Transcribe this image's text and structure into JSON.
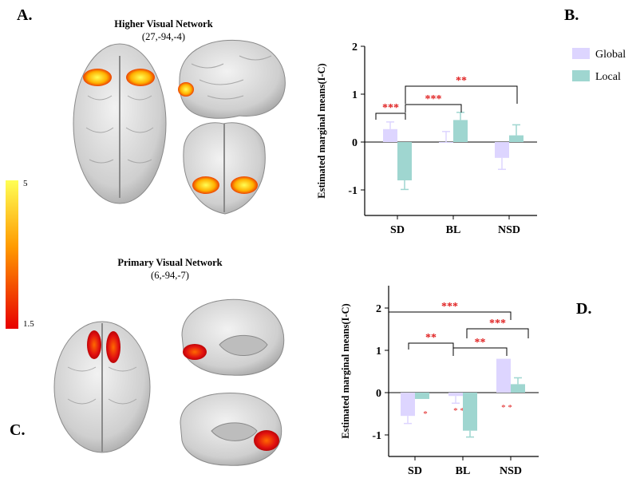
{
  "panels": {
    "A": {
      "letter": "A.",
      "title": "Higher Visual Network",
      "coords": "(27,-94,-4)"
    },
    "B": {
      "letter": "B."
    },
    "C": {
      "letter": "C.",
      "title": "Primary Visual Network",
      "coords": "(6,-94,-7)"
    },
    "D": {
      "letter": "D."
    }
  },
  "colorbar": {
    "max_label": "5",
    "min_label": "1.5",
    "colors": [
      "#ffff55",
      "#ff9a00",
      "#e80000"
    ]
  },
  "colors": {
    "global": "#ddd5ff",
    "local": "#9fd6d0",
    "sig": "#e02020"
  },
  "chart_data": [
    {
      "type": "bar",
      "panel": "B",
      "ylabel": "Estimated marginal means(I-C)",
      "categories": [
        "SD",
        "BL",
        "NSD"
      ],
      "ylim": [
        -1.5,
        2
      ],
      "yticks": [
        -1,
        0,
        1,
        2
      ],
      "legend": {
        "position": "top-right",
        "entries": [
          "Global",
          "Local"
        ]
      },
      "series": [
        {
          "name": "Global",
          "values": [
            0.27,
            0.0,
            -0.33
          ],
          "errors": [
            0.15,
            0.22,
            0.24
          ]
        },
        {
          "name": "Local",
          "values": [
            -0.8,
            0.46,
            0.14
          ],
          "errors": [
            0.19,
            0.16,
            0.22
          ]
        }
      ],
      "significance": [
        {
          "from": "SD-Global",
          "to": "SD-Local",
          "label": "***"
        },
        {
          "from": "SD-Local",
          "to": "BL-Local",
          "label": "***"
        },
        {
          "from": "SD-Local",
          "to": "NSD-Local",
          "label": "**"
        }
      ]
    },
    {
      "type": "bar",
      "panel": "D",
      "ylabel": "Estimated marginal means(I-C)",
      "categories": [
        "SD",
        "BL",
        "NSD"
      ],
      "ylim": [
        -1.5,
        2.4
      ],
      "yticks": [
        -1,
        0,
        1,
        2
      ],
      "series": [
        {
          "name": "Global",
          "values": [
            -0.55,
            -0.08,
            0.8
          ],
          "errors": [
            0.18,
            0.17,
            0.0
          ],
          "marks": [
            "",
            "* *",
            "* *"
          ]
        },
        {
          "name": "Local",
          "values": [
            -0.15,
            -0.9,
            0.2
          ],
          "errors": [
            0.0,
            0.15,
            0.15
          ],
          "marks": [
            "*",
            "",
            ""
          ]
        }
      ],
      "significance": [
        {
          "from": "SD",
          "to": "NSD",
          "label": "***"
        },
        {
          "from": "SD",
          "to": "BL",
          "label": "**"
        },
        {
          "from": "BL",
          "to": "NSD",
          "label": "**"
        },
        {
          "from": "BL",
          "to": "NSD",
          "label": "***"
        }
      ]
    }
  ]
}
